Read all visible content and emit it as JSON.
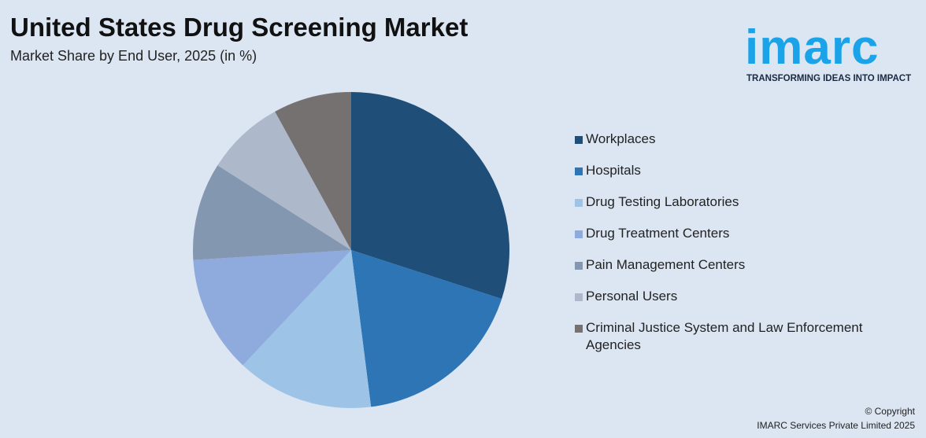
{
  "chart_data": {
    "type": "pie",
    "title": "United States Drug Screening Market",
    "subtitle": "Market Share by End User, 2025 (in %)",
    "categories": [
      "Workplaces",
      "Hospitals",
      "Drug Testing Laboratories",
      "Drug Treatment Centers",
      "Pain Management Centers",
      "Personal Users",
      "Criminal Justice System and Law Enforcement Agencies"
    ],
    "values": [
      30,
      18,
      14,
      12,
      10,
      8,
      8
    ],
    "colors": [
      "#1f4e79",
      "#2e75b6",
      "#9dc3e6",
      "#8faadc",
      "#8497b0",
      "#adb9ca",
      "#767171"
    ],
    "legend": "right"
  },
  "logo": {
    "name": "imarc",
    "tagline": "TRANSFORMING IDEAS INTO IMPACT"
  },
  "footer": {
    "copyright": "© Copyright",
    "company": "IMARC Services Private Limited 2025"
  }
}
